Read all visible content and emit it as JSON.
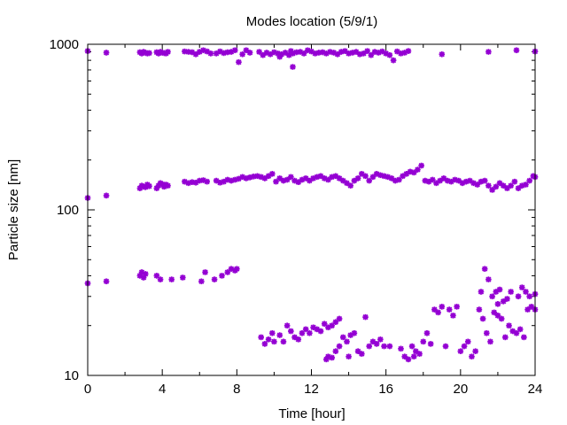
{
  "chart_data": {
    "type": "scatter",
    "title": "Modes location (5/9/1)",
    "xlabel": "Time [hour]",
    "ylabel": "Particle size [nm]",
    "xlim": [
      0,
      24
    ],
    "ylim": [
      10,
      1000
    ],
    "y_scale": "log",
    "x_ticks": [
      0,
      4,
      8,
      12,
      16,
      20,
      24
    ],
    "x_tick_labels": [
      "0",
      "4",
      "8",
      "12",
      "16",
      "20",
      "24"
    ],
    "y_ticks": [
      10,
      100,
      1000
    ],
    "y_tick_labels": [
      "10",
      "100",
      "1000"
    ],
    "grid": false,
    "legend": "none",
    "marker_color": "#9400d3",
    "series": [
      {
        "points": [
          [
            0,
            910
          ],
          [
            1,
            890
          ],
          [
            2.8,
            895
          ],
          [
            2.9,
            880
          ],
          [
            3.0,
            900
          ],
          [
            3.1,
            890
          ],
          [
            3.2,
            880
          ],
          [
            3.3,
            885
          ],
          [
            3.7,
            895
          ],
          [
            3.8,
            880
          ],
          [
            3.9,
            900
          ],
          [
            4.0,
            890
          ],
          [
            4.1,
            885
          ],
          [
            4.2,
            880
          ],
          [
            4.3,
            900
          ],
          [
            5.2,
            905
          ],
          [
            5.4,
            900
          ],
          [
            5.6,
            895
          ],
          [
            5.8,
            870
          ],
          [
            6.0,
            900
          ],
          [
            6.2,
            920
          ],
          [
            6.4,
            905
          ],
          [
            6.6,
            880
          ],
          [
            6.9,
            880
          ],
          [
            7.1,
            905
          ],
          [
            7.3,
            885
          ],
          [
            7.5,
            895
          ],
          [
            7.7,
            900
          ],
          [
            7.9,
            920
          ],
          [
            8.1,
            780
          ],
          [
            8.3,
            870
          ],
          [
            8.5,
            920
          ],
          [
            8.7,
            890
          ],
          [
            9.2,
            900
          ],
          [
            9.4,
            860
          ],
          [
            9.6,
            890
          ],
          [
            9.8,
            870
          ],
          [
            10.0,
            895
          ],
          [
            10.2,
            880
          ],
          [
            10.4,
            870
          ],
          [
            10.6,
            890
          ],
          [
            10.8,
            860
          ],
          [
            11.0,
            880
          ],
          [
            11.2,
            895
          ],
          [
            11.4,
            900
          ],
          [
            11.6,
            880
          ],
          [
            11.8,
            920
          ],
          [
            12.0,
            905
          ],
          [
            12.2,
            880
          ],
          [
            12.4,
            890
          ],
          [
            12.6,
            895
          ],
          [
            12.8,
            880
          ],
          [
            13.0,
            900
          ],
          [
            13.2,
            890
          ],
          [
            13.4,
            870
          ],
          [
            13.6,
            900
          ],
          [
            13.8,
            910
          ],
          [
            14.0,
            880
          ],
          [
            14.2,
            890
          ],
          [
            14.4,
            900
          ],
          [
            14.6,
            870
          ],
          [
            14.8,
            880
          ],
          [
            15.0,
            910
          ],
          [
            15.2,
            860
          ],
          [
            15.4,
            900
          ],
          [
            15.6,
            890
          ],
          [
            15.8,
            905
          ],
          [
            16.0,
            880
          ],
          [
            16.2,
            860
          ],
          [
            16.4,
            800
          ],
          [
            16.6,
            905
          ],
          [
            16.8,
            880
          ],
          [
            17.0,
            890
          ],
          [
            17.2,
            910
          ],
          [
            19.0,
            870
          ],
          [
            21.5,
            900
          ],
          [
            23.0,
            920
          ],
          [
            24.0,
            905
          ],
          [
            10.3,
            840
          ],
          [
            10.9,
            910
          ],
          [
            11.0,
            730
          ]
        ]
      },
      {
        "points": [
          [
            0,
            118
          ],
          [
            1,
            122
          ],
          [
            2.8,
            135
          ],
          [
            2.9,
            140
          ],
          [
            3.0,
            138
          ],
          [
            3.1,
            137
          ],
          [
            3.2,
            142
          ],
          [
            3.3,
            139
          ],
          [
            3.7,
            135
          ],
          [
            3.8,
            140
          ],
          [
            3.9,
            145
          ],
          [
            4.0,
            143
          ],
          [
            4.1,
            138
          ],
          [
            4.2,
            142
          ],
          [
            4.3,
            140
          ],
          [
            5.2,
            148
          ],
          [
            5.4,
            145
          ],
          [
            5.6,
            147
          ],
          [
            5.8,
            146
          ],
          [
            6.0,
            150
          ],
          [
            6.2,
            151
          ],
          [
            6.4,
            148
          ],
          [
            6.9,
            150
          ],
          [
            7.1,
            146
          ],
          [
            7.3,
            148
          ],
          [
            7.5,
            152
          ],
          [
            7.7,
            150
          ],
          [
            7.9,
            152
          ],
          [
            8.1,
            154
          ],
          [
            8.3,
            158
          ],
          [
            8.5,
            155
          ],
          [
            8.7,
            157
          ],
          [
            8.9,
            159
          ],
          [
            9.1,
            160
          ],
          [
            9.3,
            158
          ],
          [
            9.5,
            155
          ],
          [
            9.7,
            160
          ],
          [
            9.9,
            165
          ],
          [
            10.1,
            148
          ],
          [
            10.3,
            155
          ],
          [
            10.5,
            150
          ],
          [
            10.7,
            152
          ],
          [
            10.9,
            158
          ],
          [
            11.1,
            150
          ],
          [
            11.3,
            147
          ],
          [
            11.5,
            152
          ],
          [
            11.7,
            155
          ],
          [
            11.9,
            150
          ],
          [
            12.1,
            155
          ],
          [
            12.3,
            158
          ],
          [
            12.5,
            160
          ],
          [
            12.7,
            155
          ],
          [
            12.9,
            152
          ],
          [
            13.1,
            158
          ],
          [
            13.3,
            160
          ],
          [
            13.5,
            155
          ],
          [
            13.7,
            150
          ],
          [
            13.9,
            145
          ],
          [
            14.1,
            140
          ],
          [
            14.3,
            150
          ],
          [
            14.5,
            155
          ],
          [
            14.7,
            165
          ],
          [
            14.9,
            160
          ],
          [
            15.1,
            150
          ],
          [
            15.3,
            158
          ],
          [
            15.5,
            165
          ],
          [
            15.7,
            162
          ],
          [
            15.9,
            160
          ],
          [
            16.1,
            158
          ],
          [
            16.3,
            155
          ],
          [
            16.5,
            150
          ],
          [
            16.7,
            152
          ],
          [
            16.9,
            160
          ],
          [
            17.1,
            165
          ],
          [
            17.3,
            170
          ],
          [
            17.5,
            168
          ],
          [
            17.7,
            175
          ],
          [
            17.9,
            185
          ],
          [
            18.1,
            150
          ],
          [
            18.3,
            148
          ],
          [
            18.5,
            152
          ],
          [
            18.7,
            145
          ],
          [
            18.9,
            150
          ],
          [
            19.1,
            155
          ],
          [
            19.3,
            150
          ],
          [
            19.5,
            148
          ],
          [
            19.7,
            152
          ],
          [
            19.9,
            150
          ],
          [
            20.1,
            145
          ],
          [
            20.3,
            148
          ],
          [
            20.5,
            150
          ],
          [
            20.7,
            145
          ],
          [
            20.9,
            142
          ],
          [
            21.1,
            148
          ],
          [
            21.3,
            150
          ],
          [
            21.5,
            140
          ],
          [
            21.7,
            132
          ],
          [
            21.9,
            138
          ],
          [
            22.1,
            145
          ],
          [
            22.3,
            140
          ],
          [
            22.5,
            135
          ],
          [
            22.7,
            140
          ],
          [
            22.9,
            148
          ],
          [
            23.1,
            135
          ],
          [
            23.3,
            140
          ],
          [
            23.5,
            142
          ],
          [
            23.7,
            150
          ],
          [
            23.9,
            160
          ],
          [
            24.0,
            158
          ]
        ]
      },
      {
        "points": [
          [
            0,
            36
          ],
          [
            1,
            37
          ],
          [
            2.8,
            40
          ],
          [
            2.9,
            42
          ],
          [
            3.0,
            39
          ],
          [
            3.1,
            41
          ],
          [
            3.7,
            40
          ],
          [
            3.9,
            38
          ],
          [
            4.5,
            38
          ],
          [
            5.1,
            39
          ],
          [
            6.1,
            37
          ],
          [
            6.3,
            42
          ],
          [
            6.8,
            38
          ],
          [
            7.2,
            40
          ],
          [
            7.5,
            42
          ],
          [
            7.7,
            44
          ],
          [
            7.9,
            43
          ],
          [
            8.0,
            44
          ]
        ]
      },
      {
        "points": [
          [
            9.3,
            17
          ],
          [
            9.5,
            15.5
          ],
          [
            9.7,
            16.5
          ],
          [
            9.9,
            18
          ],
          [
            10.0,
            16
          ],
          [
            10.3,
            17.5
          ],
          [
            10.5,
            16
          ],
          [
            10.7,
            20
          ],
          [
            10.9,
            18.5
          ],
          [
            11.1,
            17
          ],
          [
            11.3,
            16.5
          ],
          [
            11.5,
            18
          ],
          [
            11.7,
            19
          ],
          [
            11.9,
            18
          ],
          [
            12.1,
            19.5
          ],
          [
            12.3,
            19
          ],
          [
            12.5,
            18.5
          ],
          [
            12.7,
            20.5
          ],
          [
            12.9,
            19.5
          ],
          [
            13.1,
            20
          ],
          [
            13.3,
            21
          ],
          [
            13.5,
            22
          ],
          [
            13.7,
            17
          ],
          [
            13.9,
            16
          ],
          [
            14.1,
            17.5
          ],
          [
            14.3,
            18
          ],
          [
            14.5,
            14
          ],
          [
            14.7,
            13.5
          ],
          [
            14.9,
            22.5
          ],
          [
            15.1,
            15
          ],
          [
            15.3,
            16
          ],
          [
            15.5,
            15.5
          ],
          [
            15.7,
            16.5
          ],
          [
            15.9,
            15
          ],
          [
            12.9,
            13
          ],
          [
            13.1,
            12.8
          ],
          [
            13.3,
            14
          ],
          [
            13.5,
            15
          ],
          [
            14.0,
            13
          ],
          [
            16.2,
            15
          ],
          [
            16.8,
            14.5
          ],
          [
            17.0,
            13
          ],
          [
            17.2,
            12.5
          ],
          [
            17.4,
            15
          ],
          [
            17.6,
            14
          ],
          [
            17.8,
            13.5
          ],
          [
            18.0,
            16
          ],
          [
            18.2,
            18
          ],
          [
            18.4,
            15.5
          ],
          [
            18.6,
            25
          ],
          [
            18.8,
            24
          ],
          [
            19.0,
            26
          ],
          [
            19.2,
            15
          ],
          [
            19.4,
            25
          ],
          [
            19.6,
            23
          ],
          [
            19.8,
            26
          ],
          [
            20.0,
            14
          ],
          [
            20.2,
            15
          ],
          [
            20.4,
            16
          ],
          [
            20.6,
            13
          ],
          [
            20.8,
            14
          ],
          [
            21.0,
            25
          ],
          [
            21.2,
            22
          ],
          [
            21.4,
            18
          ],
          [
            21.6,
            16
          ],
          [
            21.8,
            24
          ],
          [
            22.0,
            23
          ],
          [
            22.2,
            22
          ],
          [
            22.4,
            17
          ],
          [
            22.6,
            20
          ],
          [
            22.8,
            18.5
          ],
          [
            23.0,
            18
          ],
          [
            23.2,
            19
          ],
          [
            23.4,
            17
          ],
          [
            23.6,
            25
          ],
          [
            23.8,
            26
          ],
          [
            24.0,
            25
          ],
          [
            21.3,
            44
          ],
          [
            21.5,
            38
          ],
          [
            21.7,
            30
          ],
          [
            21.9,
            32
          ],
          [
            22.1,
            33
          ],
          [
            22.3,
            28
          ],
          [
            22.5,
            29
          ],
          [
            22.7,
            32
          ],
          [
            23.1,
            30
          ],
          [
            23.3,
            34
          ],
          [
            23.5,
            32
          ],
          [
            23.7,
            30
          ],
          [
            24.0,
            31
          ],
          [
            21.1,
            32
          ],
          [
            22.0,
            27
          ],
          [
            17.5,
            13
          ],
          [
            12.8,
            12.5
          ]
        ]
      }
    ]
  }
}
